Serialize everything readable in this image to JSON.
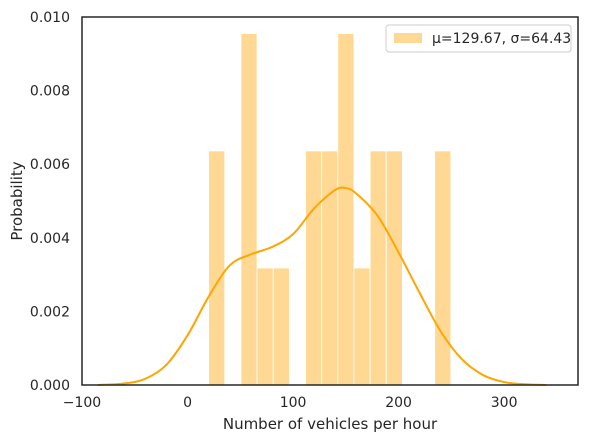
{
  "chart_data": {
    "type": "bar",
    "subtype": "histogram-with-kde",
    "xlabel": "Number of vehicles per hour",
    "ylabel": "Probability",
    "xlim": [
      -100,
      370
    ],
    "ylim": [
      0,
      0.01
    ],
    "xticks": [
      -100,
      0,
      100,
      200,
      300
    ],
    "yticks": [
      0.0,
      0.002,
      0.004,
      0.006,
      0.008,
      0.01
    ],
    "xtick_labels": [
      "−100",
      "0",
      "100",
      "200",
      "300"
    ],
    "ytick_labels": [
      "0.000",
      "0.002",
      "0.004",
      "0.006",
      "0.008",
      "0.010"
    ],
    "grid": false,
    "legend": {
      "placement": "top-right",
      "entries": [
        "μ=129.67, σ=64.43"
      ]
    },
    "colors": {
      "bars": "#ffd894",
      "kde": "#ffa500",
      "axes": "#262626"
    },
    "bins": [
      {
        "x0": 20.0,
        "x1": 35.3,
        "density": 0.00636
      },
      {
        "x0": 35.3,
        "x1": 50.6,
        "density": 0.0
      },
      {
        "x0": 50.6,
        "x1": 65.9,
        "density": 0.00955
      },
      {
        "x0": 65.9,
        "x1": 81.2,
        "density": 0.00318
      },
      {
        "x0": 81.2,
        "x1": 96.5,
        "density": 0.00318
      },
      {
        "x0": 96.5,
        "x1": 111.8,
        "density": 0.0
      },
      {
        "x0": 111.8,
        "x1": 127.1,
        "density": 0.00636
      },
      {
        "x0": 127.1,
        "x1": 142.4,
        "density": 0.00636
      },
      {
        "x0": 142.4,
        "x1": 157.7,
        "density": 0.00955
      },
      {
        "x0": 157.7,
        "x1": 173.0,
        "density": 0.00318
      },
      {
        "x0": 173.0,
        "x1": 188.3,
        "density": 0.00636
      },
      {
        "x0": 188.3,
        "x1": 203.6,
        "density": 0.00636
      },
      {
        "x0": 203.6,
        "x1": 218.9,
        "density": 0.0
      },
      {
        "x0": 218.9,
        "x1": 234.2,
        "density": 0.0
      },
      {
        "x0": 234.2,
        "x1": 249.5,
        "density": 0.00636
      }
    ],
    "kde": {
      "x": [
        -85,
        -60,
        -40,
        -20,
        0,
        20,
        40,
        60,
        80,
        100,
        120,
        140,
        150,
        160,
        180,
        200,
        220,
        240,
        260,
        280,
        300,
        320,
        340
      ],
      "y": [
        0.0,
        4e-05,
        0.00017,
        0.00055,
        0.00135,
        0.0024,
        0.00325,
        0.00355,
        0.00375,
        0.0041,
        0.0048,
        0.0053,
        0.00535,
        0.0052,
        0.0046,
        0.0036,
        0.0025,
        0.00145,
        0.0007,
        0.00027,
        8e-05,
        2e-05,
        0.0
      ]
    }
  }
}
